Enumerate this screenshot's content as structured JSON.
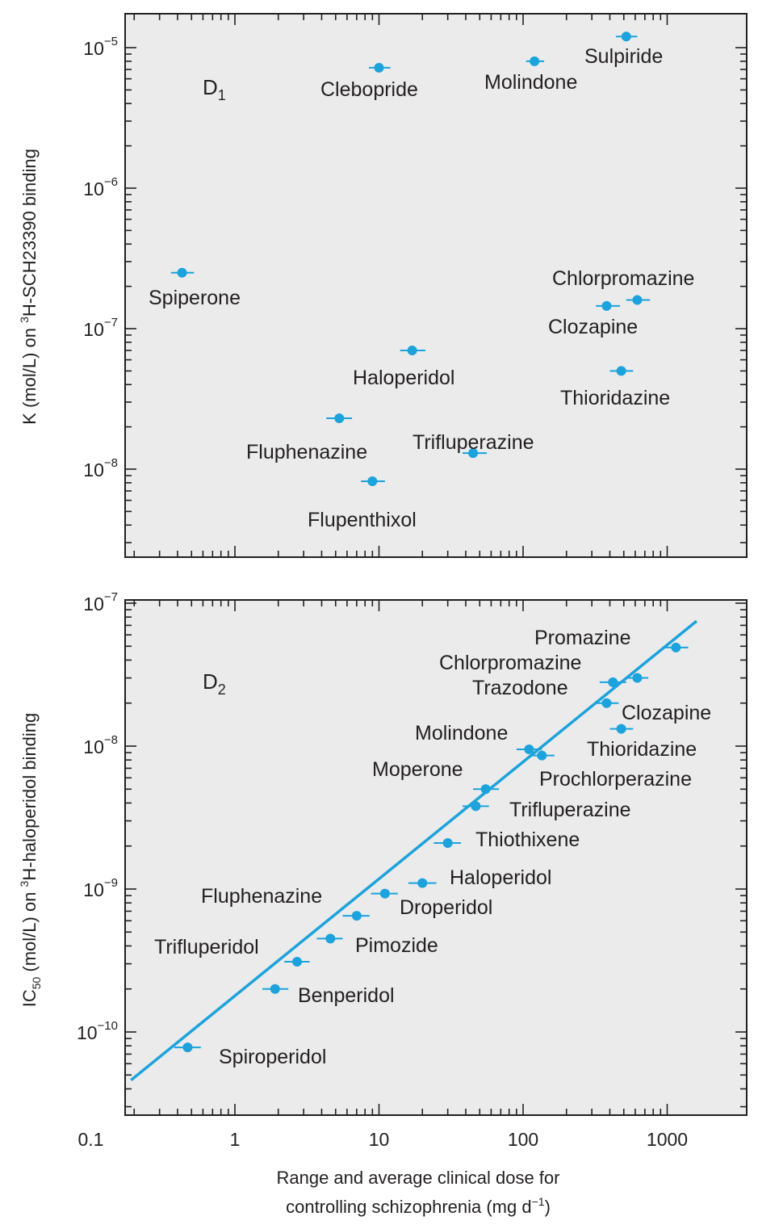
{
  "chart_data": [
    {
      "type": "scatter",
      "panel_label": {
        "main": "D",
        "sub": "1"
      },
      "ylabel": {
        "pre": "K (mol/L) on ",
        "sup": "3",
        "post": "H-SCH23390 binding"
      },
      "yscale": "log",
      "xscale": "log",
      "ylim": [
        4e-09,
        1.3e-05
      ],
      "yticks": [
        {
          "value": 1e-05,
          "base": "10",
          "exp": "−5"
        },
        {
          "value": 1e-06,
          "base": "10",
          "exp": "−6"
        },
        {
          "value": 1e-07,
          "base": "10",
          "exp": "−7"
        },
        {
          "value": 1e-08,
          "base": "10",
          "exp": "−8"
        }
      ],
      "points": [
        {
          "name": "Sulpiride",
          "x": 520,
          "y": 1.2e-05,
          "xerr": [
            440,
            620
          ]
        },
        {
          "name": "Molindone",
          "x": 120,
          "y": 8e-06,
          "xerr": [
            105,
            140
          ]
        },
        {
          "name": "Clebopride",
          "x": 10,
          "y": 7.2e-06,
          "xerr": [
            8.5,
            12
          ]
        },
        {
          "name": "Spiperone",
          "x": 0.43,
          "y": 2.5e-07,
          "xerr": [
            0.36,
            0.52
          ]
        },
        {
          "name": "Chlorpromazine",
          "x": 620,
          "y": 1.6e-07,
          "xerr": [
            520,
            760
          ]
        },
        {
          "name": "Clozapine",
          "x": 380,
          "y": 1.45e-07,
          "xerr": [
            320,
            470
          ]
        },
        {
          "name": "Haloperidol",
          "x": 17,
          "y": 7e-08,
          "xerr": [
            14,
            21
          ]
        },
        {
          "name": "Thioridazine",
          "x": 480,
          "y": 5e-08,
          "xerr": [
            400,
            580
          ]
        },
        {
          "name": "Fluphenazine",
          "x": 5.3,
          "y": 2.3e-08,
          "xerr": [
            4.3,
            6.5
          ]
        },
        {
          "name": "Trifluperazine",
          "x": 45,
          "y": 1.3e-08,
          "xerr": [
            38,
            56
          ]
        },
        {
          "name": "Flupenthixol",
          "x": 9,
          "y": 8.2e-09,
          "xerr": [
            7.5,
            11
          ]
        }
      ]
    },
    {
      "type": "scatter",
      "panel_label": {
        "main": "D",
        "sub": "2"
      },
      "ylabel": {
        "pre": "IC",
        "sub": "50",
        "mid": " (mol/L) on ",
        "sup": "3",
        "post": "H-haloperidol binding"
      },
      "yscale": "log",
      "xscale": "log",
      "xlim": [
        0.1,
        3200
      ],
      "ylim": [
        3e-11,
        1e-07
      ],
      "xticks": [
        {
          "value": 0.1,
          "label": "0.1"
        },
        {
          "value": 1,
          "label": "1"
        },
        {
          "value": 10,
          "label": "10"
        },
        {
          "value": 100,
          "label": "100"
        },
        {
          "value": 1000,
          "label": "1000"
        }
      ],
      "yticks": [
        {
          "value": 1e-07,
          "base": "10",
          "exp": "−7"
        },
        {
          "value": 1e-08,
          "base": "10",
          "exp": "−8"
        },
        {
          "value": 1e-09,
          "base": "10",
          "exp": "−9"
        },
        {
          "value": 1e-10,
          "base": "10",
          "exp": "−10"
        }
      ],
      "xlabel": {
        "line1": "Range and average clinical dose for",
        "line2_pre": "controlling schizophrenia (mg d",
        "line2_sup": "−1",
        "line2_post": ")"
      },
      "regression_line": {
        "x": [
          0.19,
          1600
        ],
        "y": [
          4.6e-11,
          7.5e-08
        ]
      },
      "points": [
        {
          "name": "Promazine",
          "x": 1150,
          "y": 4.9e-08,
          "xerr": [
            950,
            1400
          ]
        },
        {
          "name": "Chlorpromazine",
          "x": 420,
          "y": 2.8e-08,
          "xerr": [
            340,
            520
          ]
        },
        {
          "name": "Chlorpromazine",
          "x": 620,
          "y": 3e-08,
          "xerr": [
            530,
            740
          ]
        },
        {
          "name": "Trazodone",
          "x": 380,
          "y": 2e-08,
          "xerr": [
            320,
            460
          ]
        },
        {
          "name": "Clozapine",
          "x": 480,
          "y": 1.32e-08,
          "xerr": [
            400,
            580
          ]
        },
        {
          "name": "Molindone",
          "x": 110,
          "y": 9.5e-09,
          "xerr": [
            90,
            135
          ]
        },
        {
          "name": "Thioridazine",
          "x": 135,
          "y": 8.6e-09,
          "xerr": [
            110,
            165
          ]
        },
        {
          "name": "Moperone",
          "x": 55,
          "y": 5e-09,
          "xerr": [
            45,
            68
          ]
        },
        {
          "name": "Trifluperazine",
          "x": 47,
          "y": 3.8e-09,
          "xerr": [
            38,
            58
          ]
        },
        {
          "name": "Thiothixene",
          "x": 30,
          "y": 2.1e-09,
          "xerr": [
            24,
            37
          ]
        },
        {
          "name": "Haloperidol",
          "x": 20,
          "y": 1.1e-09,
          "xerr": [
            16,
            25
          ]
        },
        {
          "name": "Droperidol",
          "x": 11,
          "y": 9.3e-10,
          "xerr": [
            8.8,
            13.5
          ]
        },
        {
          "name": "Fluphenazine",
          "x": 7,
          "y": 6.5e-10,
          "xerr": [
            5.6,
            8.6
          ]
        },
        {
          "name": "Pimozide",
          "x": 4.6,
          "y": 4.5e-10,
          "xerr": [
            3.7,
            5.6
          ]
        },
        {
          "name": "Trifluperidol",
          "x": 2.7,
          "y": 3.1e-10,
          "xerr": [
            2.2,
            3.3
          ]
        },
        {
          "name": "Benperidol",
          "x": 1.9,
          "y": 2e-10,
          "xerr": [
            1.55,
            2.35
          ]
        },
        {
          "name": "Spiroperidol",
          "x": 0.47,
          "y": 7.8e-11,
          "xerr": [
            0.38,
            0.58
          ]
        }
      ],
      "labels": [
        "Promazine",
        "Chlorpromazine",
        "Trazodone",
        "Clozapine",
        "Molindone",
        "Thioridazine",
        "Moperone",
        "Prochlorperazine",
        "Trifluperazine",
        "Thiothixene",
        "Haloperidol",
        "Fluphenazine",
        "Droperidol",
        "Pimozide",
        "Trifluperidol",
        "Benperidol",
        "Spiroperidol"
      ]
    }
  ]
}
